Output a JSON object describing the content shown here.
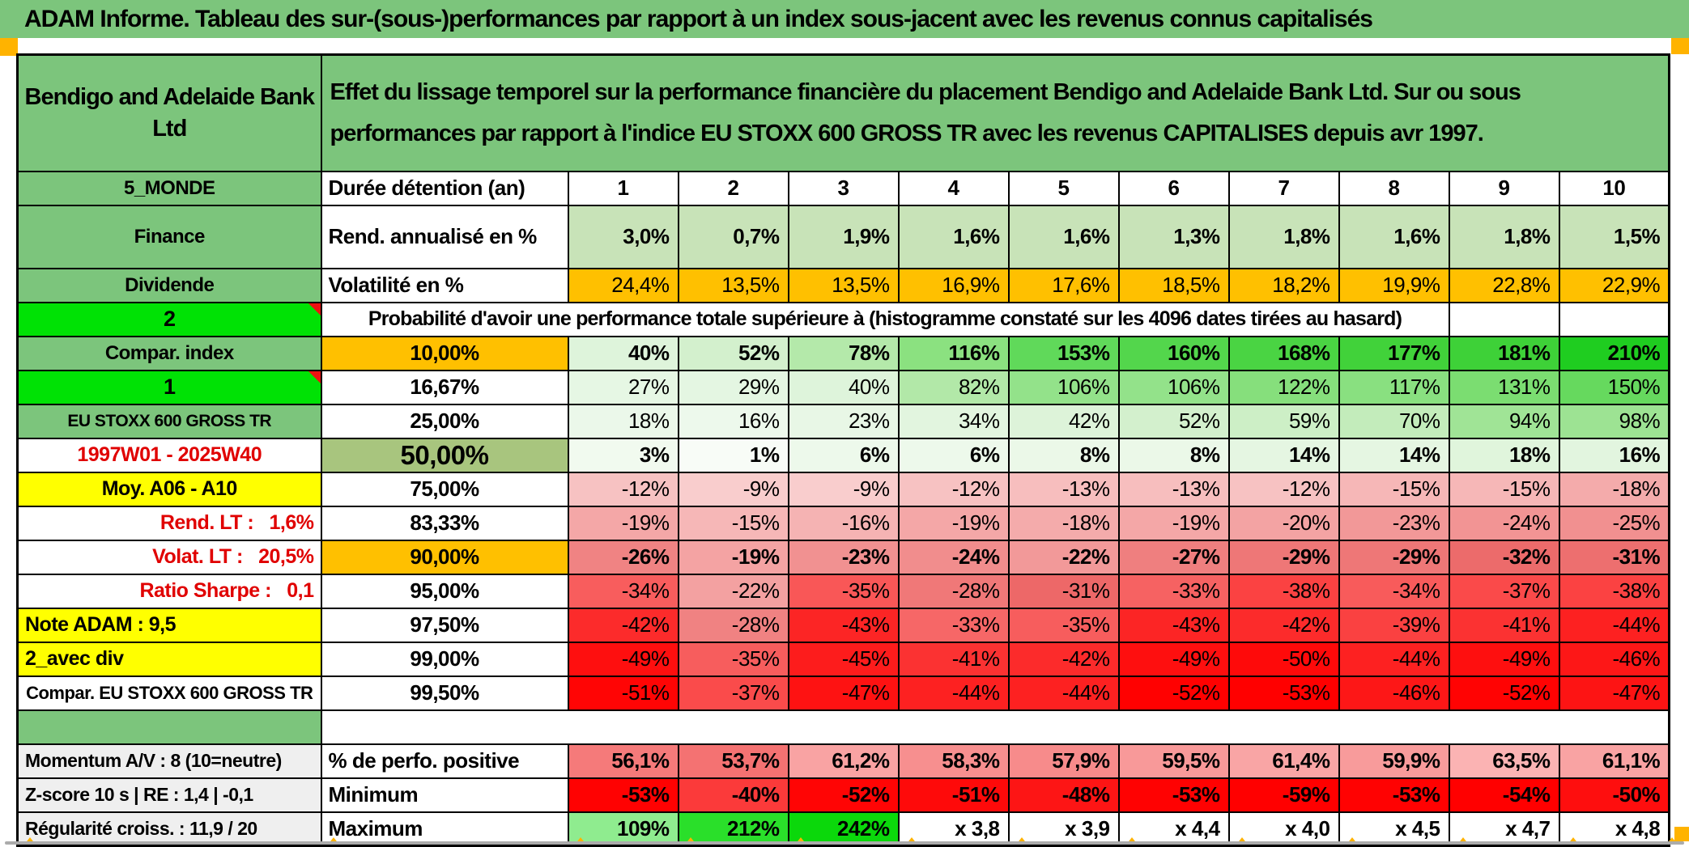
{
  "title": "ADAM Informe. Tableau des sur-(sous-)performances par rapport à un index sous-jacent avec les revenus connus capitalisés",
  "header": {
    "instrument": "Bendigo and Adelaide Bank\nLtd",
    "description": "Effet du lissage temporel sur la performance financière du placement Bendigo and Adelaide Bank Ltd. Sur ou sous\nperformances par rapport à l'indice EU STOXX 600 GROSS TR avec les revenus CAPITALISES depuis avr 1997."
  },
  "palette": {
    "band_green": "#7CC57C",
    "bright_green": "#00E205",
    "orange": "#FFC000",
    "yellow": "#FFFF00",
    "olive": "#A8C57E",
    "gray_label": "#EFEFEF",
    "red_text": "#E00000",
    "marker_orange": "#FFB300",
    "comment_red": "#EE1111"
  },
  "table": {
    "rows": [
      {
        "name": "holding-period",
        "label": "5_MONDE",
        "labelClass": "lab-green",
        "col2": "Durée détention (an)",
        "col2Class": "c2-name",
        "center": true,
        "bold": true,
        "values": [
          "1",
          "2",
          "3",
          "4",
          "5",
          "6",
          "7",
          "8",
          "9",
          "10"
        ],
        "colors": null
      },
      {
        "name": "annualized-return",
        "tall": true,
        "label": "Finance",
        "labelClass": "lab-green",
        "col2": "Rend. annualisé en %",
        "col2Class": "c2-name",
        "bold": true,
        "values": [
          "3,0%",
          "0,7%",
          "1,9%",
          "1,6%",
          "1,6%",
          "1,3%",
          "1,8%",
          "1,6%",
          "1,8%",
          "1,5%"
        ],
        "colors": [
          "#C8E3B8",
          "#C8E3B8",
          "#C8E3B8",
          "#C8E3B8",
          "#C8E3B8",
          "#C8E3B8",
          "#C8E3B8",
          "#C8E3B8",
          "#C8E3B8",
          "#C8E3B8"
        ]
      },
      {
        "name": "volatility",
        "label": "Dividende",
        "labelClass": "lab-green",
        "col2": "Volatilité en %",
        "col2Class": "c2-name",
        "bold": false,
        "values": [
          "24,4%",
          "13,5%",
          "13,5%",
          "16,9%",
          "17,6%",
          "18,5%",
          "18,2%",
          "19,9%",
          "22,8%",
          "22,9%"
        ],
        "colors": [
          "#FFC000",
          "#FFC000",
          "#FFC000",
          "#FFC000",
          "#FFC000",
          "#FFC000",
          "#FFC000",
          "#FFC000",
          "#FFC000",
          "#FFC000"
        ]
      },
      {
        "name": "probability-note",
        "type": "proba",
        "label": "2",
        "labelClass": "lab-bright corner",
        "text": "Probabilité d'avoir une performance totale supérieure à (histogramme constaté sur les 4096 dates tirées au hasard)"
      },
      {
        "name": "fractile-10",
        "label": "Compar. index",
        "labelClass": "lab-green",
        "col2": "10,00%",
        "col2Class": "c2-orange",
        "bold": true,
        "values": [
          "40%",
          "52%",
          "78%",
          "116%",
          "153%",
          "160%",
          "168%",
          "177%",
          "181%",
          "210%"
        ],
        "colors": [
          "#DEF4DB",
          "#D3F0CD",
          "#B4E9AA",
          "#8BE180",
          "#60D95A",
          "#53D64C",
          "#4AD443",
          "#41D23A",
          "#3ED138",
          "#1FCD20"
        ]
      },
      {
        "name": "fractile-16",
        "label": "1",
        "labelClass": "lab-bright corner",
        "col2": "16,67%",
        "col2Class": "c2-center",
        "bold": false,
        "values": [
          "27%",
          "29%",
          "40%",
          "82%",
          "106%",
          "106%",
          "122%",
          "117%",
          "131%",
          "150%"
        ],
        "colors": [
          "#E6F7E4",
          "#E4F6E2",
          "#DEF4DB",
          "#B2E8A8",
          "#93E28A",
          "#93E28A",
          "#86DF7C",
          "#89E080",
          "#7BDD71",
          "#66D95E"
        ]
      },
      {
        "name": "fractile-25",
        "label": "EU STOXX 600 GROSS TR",
        "labelClass": "lab-green-sm",
        "col2": "25,00%",
        "col2Class": "c2-center",
        "bold": false,
        "values": [
          "18%",
          "16%",
          "23%",
          "34%",
          "42%",
          "52%",
          "59%",
          "70%",
          "94%",
          "98%"
        ],
        "colors": [
          "#EBF8EA",
          "#EDF9EC",
          "#E8F7E6",
          "#E2F5DF",
          "#DDF3D9",
          "#D3F0CD",
          "#CDEFC6",
          "#C3ECBB",
          "#A0E496",
          "#9DE393"
        ]
      },
      {
        "name": "fractile-50",
        "label": "1997W01 - 2025W40",
        "labelClass": "lab-red",
        "col2": "50,00%",
        "col2Class": "c2-olive",
        "bold": true,
        "values": [
          "3%",
          "1%",
          "6%",
          "6%",
          "8%",
          "8%",
          "14%",
          "14%",
          "18%",
          "16%"
        ],
        "colors": [
          "#F1FAEF",
          "#F8FCF7",
          "#EDF9EB",
          "#EDF9EB",
          "#EBF8E8",
          "#EBF8E8",
          "#E5F6E2",
          "#E5F6E2",
          "#E0F5DC",
          "#E2F5DF"
        ]
      },
      {
        "name": "fractile-75",
        "label": "Moy. A06 - A10",
        "labelClass": "lab-yellow",
        "col2": "75,00%",
        "col2Class": "c2-center",
        "bold": false,
        "values": [
          "-12%",
          "-9%",
          "-9%",
          "-12%",
          "-13%",
          "-13%",
          "-12%",
          "-15%",
          "-15%",
          "-18%"
        ],
        "colors": [
          "#F7C2C2",
          "#F9CDCD",
          "#F9CDCD",
          "#F7C2C2",
          "#F7BEBE",
          "#F7BEBE",
          "#F7C2C2",
          "#F6B7B7",
          "#F6B7B7",
          "#F4ABAB"
        ]
      },
      {
        "name": "fractile-83",
        "label": "Rend. LT :   1,6%",
        "labelClass": "lab-red align-right",
        "col2": "83,33%",
        "col2Class": "c2-center",
        "bold": false,
        "values": [
          "-19%",
          "-15%",
          "-16%",
          "-19%",
          "-18%",
          "-19%",
          "-20%",
          "-23%",
          "-24%",
          "-25%"
        ],
        "colors": [
          "#F4A7A7",
          "#F6B7B7",
          "#F5B3B3",
          "#F4A7A7",
          "#F4ABAB",
          "#F4A7A7",
          "#F3A3A3",
          "#F29898",
          "#F29494",
          "#F19090"
        ]
      },
      {
        "name": "fractile-90",
        "label": "Volat. LT :   20,5%",
        "labelClass": "lab-red align-right",
        "col2": "90,00%",
        "col2Class": "c2-orange",
        "bold": true,
        "values": [
          "-26%",
          "-19%",
          "-23%",
          "-24%",
          "-22%",
          "-27%",
          "-29%",
          "-29%",
          "-32%",
          "-31%"
        ],
        "colors": [
          "#F08383",
          "#F4A3A3",
          "#F19191",
          "#F18D8D",
          "#F29999",
          "#EF7F7F",
          "#EE7777",
          "#EE7777",
          "#EC6B6B",
          "#ED6F6F"
        ]
      },
      {
        "name": "fractile-95",
        "label": "Ratio Sharpe :   0,1",
        "labelClass": "lab-red align-right",
        "col2": "95,00%",
        "col2Class": "c2-center",
        "bold": false,
        "values": [
          "-34%",
          "-22%",
          "-35%",
          "-28%",
          "-31%",
          "-33%",
          "-38%",
          "-34%",
          "-37%",
          "-38%"
        ],
        "colors": [
          "#F85D5D",
          "#F3A1A1",
          "#F95757",
          "#F07878",
          "#ED6868",
          "#F66262",
          "#FB4242",
          "#F85B5B",
          "#FA4A4A",
          "#FB4242"
        ]
      },
      {
        "name": "fractile-975",
        "label": "Note ADAM : 9,5",
        "labelClass": "lab-yellow align-left",
        "col2": "97,50%",
        "col2Class": "c2-center",
        "bold": false,
        "values": [
          "-42%",
          "-28%",
          "-43%",
          "-33%",
          "-35%",
          "-43%",
          "-42%",
          "-39%",
          "-41%",
          "-44%"
        ],
        "colors": [
          "#FC2B2B",
          "#F08282",
          "#FC2525",
          "#F66767",
          "#F75D5D",
          "#FC2525",
          "#FC2B2B",
          "#FA4141",
          "#FB3232",
          "#FD2121"
        ]
      },
      {
        "name": "fractile-99",
        "label": "2_avec div",
        "labelClass": "lab-yellow align-left",
        "col2": "99,00%",
        "col2Class": "c2-center",
        "bold": false,
        "values": [
          "-49%",
          "-35%",
          "-45%",
          "-41%",
          "-42%",
          "-49%",
          "-50%",
          "-44%",
          "-49%",
          "-46%"
        ],
        "colors": [
          "#FE0F0F",
          "#F75D5D",
          "#FD1C1C",
          "#FB3232",
          "#FC2B2B",
          "#FE0F0F",
          "#FE0A0A",
          "#FD2121",
          "#FE0F0F",
          "#FD1717"
        ]
      },
      {
        "name": "fractile-995",
        "label": "Compar. EU STOXX 600 GROSS TR",
        "labelClass": "lab-white",
        "col2": "99,50%",
        "col2Class": "c2-center",
        "bold": false,
        "values": [
          "-51%",
          "-37%",
          "-47%",
          "-44%",
          "-44%",
          "-52%",
          "-53%",
          "-46%",
          "-52%",
          "-47%"
        ],
        "colors": [
          "#FF0505",
          "#FA4B4B",
          "#FE1212",
          "#FD2121",
          "#FD2121",
          "#FF0101",
          "#FF0000",
          "#FD1717",
          "#FF0303",
          "#FD1414"
        ]
      },
      {
        "name": "spacer",
        "type": "spacer"
      },
      {
        "name": "positive-perf",
        "label": "Momentum A/V : 8 (10=neutre)",
        "labelClass": "lab-gray align-left",
        "col2": "% de perfo. positive",
        "col2Class": "c2-name",
        "bold": true,
        "values": [
          "56,1%",
          "53,7%",
          "61,2%",
          "58,3%",
          "57,9%",
          "59,5%",
          "61,4%",
          "59,9%",
          "63,5%",
          "61,1%"
        ],
        "colors": [
          "#F57A7A",
          "#F47272",
          "#F9A3A3",
          "#F78F8F",
          "#F78B8B",
          "#F89999",
          "#F9A5A5",
          "#F89B9B",
          "#FBB3B3",
          "#F9A3A3"
        ]
      },
      {
        "name": "minimum",
        "label": "Z-score 10 s | RE : 1,4 | -0,1",
        "labelClass": "lab-gray align-left",
        "col2": "Minimum",
        "col2Class": "c2-name",
        "bold": true,
        "values": [
          "-53%",
          "-40%",
          "-52%",
          "-51%",
          "-48%",
          "-53%",
          "-59%",
          "-53%",
          "-54%",
          "-50%"
        ],
        "colors": [
          "#FF0202",
          "#FB3A3A",
          "#FF0505",
          "#FE0A0A",
          "#FD1515",
          "#FF0202",
          "#FF0000",
          "#FF0202",
          "#FF0000",
          "#FE0E0E"
        ]
      },
      {
        "name": "maximum",
        "label": "Régularité croiss. : 11,9 / 20",
        "labelClass": "lab-gray align-left",
        "col2": "Maximum",
        "col2Class": "c2-name",
        "bold": true,
        "values": [
          "109%",
          "212%",
          "242%",
          "x 3,8",
          "x 3,9",
          "x 4,4",
          "x 4,0",
          "x 4,5",
          "x 4,7",
          "x 4,8"
        ],
        "colors": [
          "#8FEC8F",
          "#2ADF2A",
          "#0BD80B",
          "#FFFFFF",
          "#FFFFFF",
          "#FFFFFF",
          "#FFFFFF",
          "#FFFFFF",
          "#FFFFFF",
          "#FFFFFF"
        ]
      }
    ]
  }
}
